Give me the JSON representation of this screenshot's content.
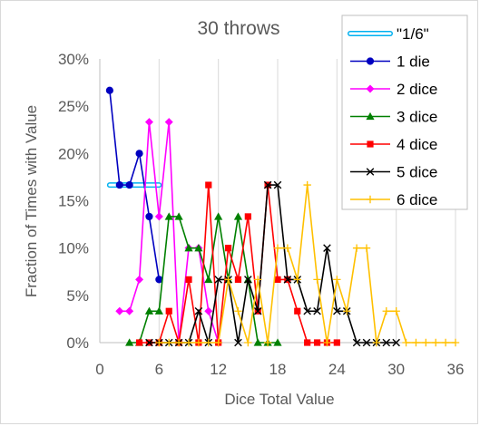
{
  "chart_data": {
    "type": "line",
    "title": "30 throws",
    "xlabel": "Dice Total Value",
    "ylabel": "Fraction of Times with Value",
    "xlim": [
      0,
      36
    ],
    "ylim": [
      0,
      0.3
    ],
    "x_ticks": [
      0,
      6,
      12,
      18,
      24,
      30,
      36
    ],
    "x_tick_labels": [
      "0",
      "6",
      "12",
      "18",
      "24",
      "30",
      "36"
    ],
    "y_ticks": [
      0,
      0.05,
      0.1,
      0.15,
      0.2,
      0.25,
      0.3
    ],
    "y_tick_labels": [
      "0%",
      "5%",
      "10%",
      "15%",
      "20%",
      "25%",
      "30%"
    ],
    "grid": {
      "vertical": true,
      "horizontal": false
    },
    "legend_position": "top-right",
    "series": [
      {
        "name": "\"1/6\"",
        "color": "#00b0f0",
        "marker": "none",
        "style": "hollow-band",
        "x": [
          1,
          2,
          3,
          4,
          5,
          6
        ],
        "y": [
          0.1667,
          0.1667,
          0.1667,
          0.1667,
          0.1667,
          0.1667
        ]
      },
      {
        "name": "1 die",
        "color": "#0000c0",
        "marker": "circle",
        "x": [
          1,
          2,
          3,
          4,
          5,
          6
        ],
        "y": [
          0.2667,
          0.1667,
          0.1667,
          0.2,
          0.1333,
          0.0667
        ]
      },
      {
        "name": "2 dice",
        "color": "#ff00ff",
        "marker": "diamond",
        "x": [
          2,
          3,
          4,
          5,
          6,
          7,
          8,
          9,
          10,
          11,
          12
        ],
        "y": [
          0.0333,
          0.0333,
          0.0667,
          0.2333,
          0.1333,
          0.2333,
          0.0,
          0.1,
          0.1,
          0.0333,
          0.0
        ]
      },
      {
        "name": "3 dice",
        "color": "#008000",
        "marker": "triangle",
        "x": [
          3,
          4,
          5,
          6,
          7,
          8,
          9,
          10,
          11,
          12,
          13,
          14,
          15,
          16,
          17,
          18
        ],
        "y": [
          0.0,
          0.0,
          0.0333,
          0.0333,
          0.1333,
          0.1333,
          0.1,
          0.1,
          0.0667,
          0.1333,
          0.0667,
          0.1333,
          0.0667,
          0.0,
          0.0,
          0.0
        ]
      },
      {
        "name": "4 dice",
        "color": "#ff0000",
        "marker": "square",
        "x": [
          4,
          5,
          6,
          7,
          8,
          9,
          10,
          11,
          12,
          13,
          14,
          15,
          16,
          17,
          18,
          19,
          20,
          21,
          22,
          23,
          24
        ],
        "y": [
          0.0,
          0.0,
          0.0,
          0.0333,
          0.0,
          0.0667,
          0.0,
          0.1667,
          0.0,
          0.1,
          0.0667,
          0.1333,
          0.0333,
          0.1667,
          0.0667,
          0.0667,
          0.0333,
          0.0,
          0.0,
          0.0,
          0.0
        ]
      },
      {
        "name": "5 dice",
        "color": "#000000",
        "marker": "x",
        "x": [
          5,
          6,
          7,
          8,
          9,
          10,
          11,
          12,
          13,
          14,
          15,
          16,
          17,
          18,
          19,
          20,
          21,
          22,
          23,
          24,
          25,
          26,
          27,
          28,
          29,
          30
        ],
        "y": [
          0.0,
          0.0,
          0.0,
          0.0,
          0.0,
          0.0333,
          0.0,
          0.0667,
          0.0667,
          0.0,
          0.0667,
          0.0333,
          0.1667,
          0.1667,
          0.0667,
          0.0667,
          0.0333,
          0.0333,
          0.1,
          0.0333,
          0.0333,
          0.0,
          0.0,
          0.0,
          0.0,
          0.0
        ]
      },
      {
        "name": "6 dice",
        "color": "#ffc000",
        "marker": "plus",
        "x": [
          6,
          7,
          8,
          9,
          10,
          11,
          12,
          13,
          14,
          15,
          16,
          17,
          18,
          19,
          20,
          21,
          22,
          23,
          24,
          25,
          26,
          27,
          28,
          29,
          30,
          31,
          32,
          33,
          34,
          35,
          36
        ],
        "y": [
          0.0,
          0.0,
          0.0,
          0.0,
          0.0,
          0.0,
          0.0,
          0.0667,
          0.0333,
          0.0,
          0.0667,
          0.0,
          0.1,
          0.1,
          0.0667,
          0.1667,
          0.0667,
          0.0,
          0.0667,
          0.0333,
          0.1,
          0.1,
          0.0,
          0.0333,
          0.0333,
          0.0,
          0.0,
          0.0,
          0.0,
          0.0,
          0.0
        ]
      }
    ]
  }
}
